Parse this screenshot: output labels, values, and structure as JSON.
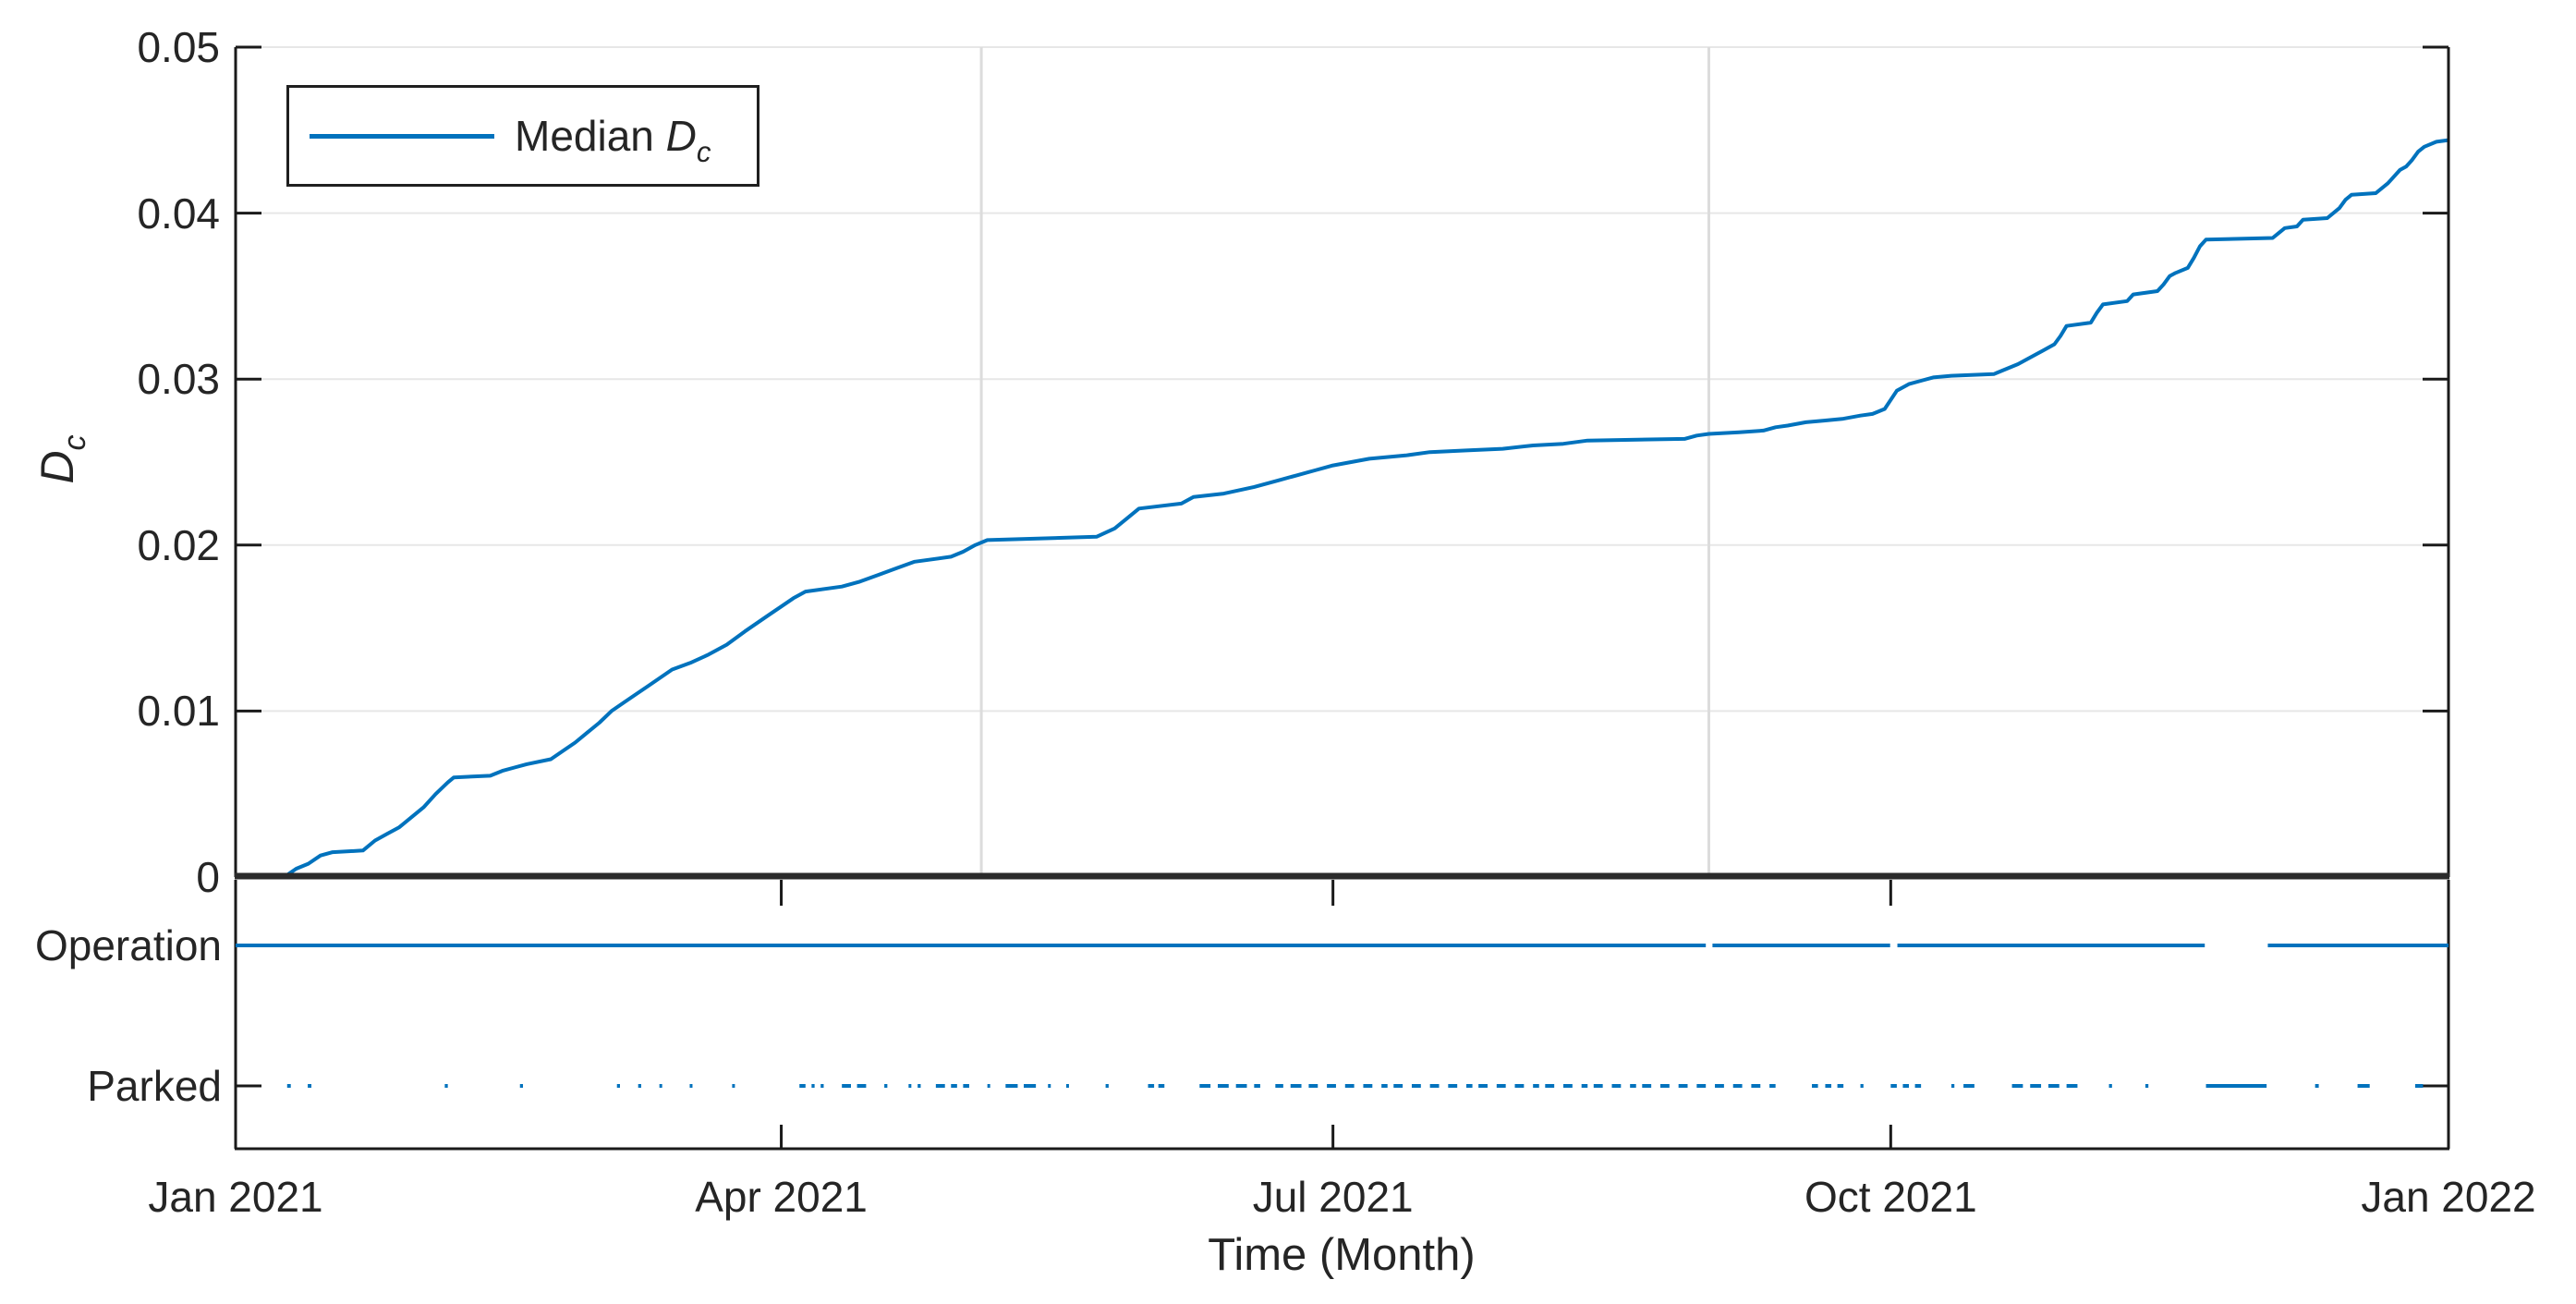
{
  "colors": {
    "line_blue": "#0072BD",
    "axis_dark": "#1a1a1a",
    "zero_line_dark": "#2b2b2b",
    "grid_light": "#e7e7e7",
    "event_line_gray": "#dcdcdc",
    "text": "#252525",
    "background": "#ffffff"
  },
  "legend": {
    "prefix": "Median ",
    "symbol": "D",
    "subscript": "c"
  },
  "axes_top": {
    "ylabel_symbol": "D",
    "ylabel_subscript": "c",
    "ylim": [
      0,
      0.05
    ],
    "yticks": [
      {
        "value": 0,
        "label": "0"
      },
      {
        "value": 0.01,
        "label": "0.01"
      },
      {
        "value": 0.02,
        "label": "0.02"
      },
      {
        "value": 0.03,
        "label": "0.03"
      },
      {
        "value": 0.04,
        "label": "0.04"
      },
      {
        "value": 0.05,
        "label": "0.05"
      }
    ]
  },
  "axes_bottom": {
    "categories": [
      {
        "label": "Operation"
      },
      {
        "label": "Parked"
      }
    ]
  },
  "xaxis": {
    "label": "Time (Month)",
    "xlim_days": [
      0,
      365
    ],
    "ticks": [
      {
        "day": 0,
        "label": "Jan 2021"
      },
      {
        "day": 90,
        "label": "Apr 2021"
      },
      {
        "day": 181,
        "label": "Jul 2021"
      },
      {
        "day": 273,
        "label": "Oct 2021"
      },
      {
        "day": 365,
        "label": "Jan 2022"
      }
    ]
  },
  "chart_data": [
    {
      "type": "line",
      "title": "",
      "xlabel": "Time (Month)",
      "ylabel": "D_c",
      "ylim": [
        0,
        0.05
      ],
      "x_unit": "days since 2021-01-01",
      "grid": "horizontal",
      "legend_position": "top-left",
      "event_lines_days": [
        123,
        243
      ],
      "series": [
        {
          "name": "Median D_c",
          "points": [
            [
              0,
              0
            ],
            [
              8,
              0
            ],
            [
              10,
              0.0005
            ],
            [
              12,
              0.0008
            ],
            [
              14,
              0.0013
            ],
            [
              16,
              0.0015
            ],
            [
              21,
              0.0016
            ],
            [
              23,
              0.0022
            ],
            [
              25,
              0.0026
            ],
            [
              27,
              0.003
            ],
            [
              29,
              0.0036
            ],
            [
              31,
              0.0042
            ],
            [
              33,
              0.005
            ],
            [
              35,
              0.0057
            ],
            [
              36,
              0.006
            ],
            [
              42,
              0.0061
            ],
            [
              44,
              0.0064
            ],
            [
              46,
              0.0066
            ],
            [
              48,
              0.0068
            ],
            [
              52,
              0.0071
            ],
            [
              54,
              0.0076
            ],
            [
              56,
              0.0081
            ],
            [
              58,
              0.0087
            ],
            [
              60,
              0.0093
            ],
            [
              62,
              0.01
            ],
            [
              64,
              0.0105
            ],
            [
              66,
              0.011
            ],
            [
              68,
              0.0115
            ],
            [
              70,
              0.012
            ],
            [
              72,
              0.0125
            ],
            [
              75,
              0.0129
            ],
            [
              78,
              0.0134
            ],
            [
              81,
              0.014
            ],
            [
              84,
              0.0148
            ],
            [
              86,
              0.0153
            ],
            [
              88,
              0.0158
            ],
            [
              90,
              0.0163
            ],
            [
              92,
              0.0168
            ],
            [
              94,
              0.0172
            ],
            [
              100,
              0.0175
            ],
            [
              103,
              0.0178
            ],
            [
              106,
              0.0182
            ],
            [
              109,
              0.0186
            ],
            [
              112,
              0.019
            ],
            [
              118,
              0.0193
            ],
            [
              120,
              0.0196
            ],
            [
              122,
              0.02
            ],
            [
              124,
              0.0203
            ],
            [
              142,
              0.0205
            ],
            [
              145,
              0.021
            ],
            [
              147,
              0.0216
            ],
            [
              149,
              0.0222
            ],
            [
              156,
              0.0225
            ],
            [
              158,
              0.0229
            ],
            [
              163,
              0.0231
            ],
            [
              168,
              0.0235
            ],
            [
              172,
              0.0239
            ],
            [
              175,
              0.0242
            ],
            [
              178,
              0.0245
            ],
            [
              181,
              0.0248
            ],
            [
              184,
              0.025
            ],
            [
              187,
              0.0252
            ],
            [
              193,
              0.0254
            ],
            [
              197,
              0.0256
            ],
            [
              203,
              0.0257
            ],
            [
              209,
              0.0258
            ],
            [
              214,
              0.026
            ],
            [
              219,
              0.0261
            ],
            [
              223,
              0.0263
            ],
            [
              239,
              0.0264
            ],
            [
              241,
              0.0266
            ],
            [
              243,
              0.0267
            ],
            [
              248,
              0.0268
            ],
            [
              252,
              0.0269
            ],
            [
              254,
              0.0271
            ],
            [
              256,
              0.0272
            ],
            [
              259,
              0.0274
            ],
            [
              262,
              0.0275
            ],
            [
              265,
              0.0276
            ],
            [
              268,
              0.0278
            ],
            [
              270,
              0.0279
            ],
            [
              272,
              0.0282
            ],
            [
              274,
              0.0293
            ],
            [
              276,
              0.0297
            ],
            [
              278,
              0.0299
            ],
            [
              280,
              0.0301
            ],
            [
              283,
              0.0302
            ],
            [
              290,
              0.0303
            ],
            [
              292,
              0.0306
            ],
            [
              294,
              0.0309
            ],
            [
              296,
              0.0313
            ],
            [
              298,
              0.0317
            ],
            [
              300,
              0.0321
            ],
            [
              301,
              0.0326
            ],
            [
              302,
              0.0332
            ],
            [
              306,
              0.0334
            ],
            [
              307,
              0.034
            ],
            [
              308,
              0.0345
            ],
            [
              312,
              0.0347
            ],
            [
              313,
              0.0351
            ],
            [
              317,
              0.0353
            ],
            [
              318,
              0.0357
            ],
            [
              319,
              0.0362
            ],
            [
              320,
              0.0364
            ],
            [
              322,
              0.0367
            ],
            [
              323,
              0.0373
            ],
            [
              324,
              0.038
            ],
            [
              325,
              0.0384
            ],
            [
              336,
              0.0385
            ],
            [
              338,
              0.0391
            ],
            [
              340,
              0.0392
            ],
            [
              341,
              0.0396
            ],
            [
              345,
              0.0397
            ],
            [
              347,
              0.0403
            ],
            [
              348,
              0.0408
            ],
            [
              349,
              0.0411
            ],
            [
              353,
              0.0412
            ],
            [
              355,
              0.0418
            ],
            [
              357,
              0.0426
            ],
            [
              358,
              0.0428
            ],
            [
              359,
              0.0432
            ],
            [
              360,
              0.0437
            ],
            [
              361,
              0.044
            ],
            [
              363,
              0.0443
            ],
            [
              365,
              0.0444
            ]
          ]
        }
      ]
    },
    {
      "type": "timeline",
      "categories": [
        "Operation",
        "Parked"
      ],
      "operation_segments_days": [
        [
          0,
          242.5
        ],
        [
          243.6,
          272.9
        ],
        [
          274.1,
          324.8
        ],
        [
          335.2,
          365
        ]
      ],
      "parked_segments_days": [
        [
          8.5,
          9.1
        ],
        [
          11.9,
          12.5
        ],
        [
          34.5,
          35.0
        ],
        [
          46.9,
          47.4
        ],
        [
          62.9,
          63.4
        ],
        [
          66.4,
          66.9
        ],
        [
          69.9,
          70.3
        ],
        [
          74.9,
          75.3
        ],
        [
          81.9,
          82.3
        ],
        [
          93.0,
          94.0
        ],
        [
          95.0,
          95.5
        ],
        [
          96.5,
          97.0
        ],
        [
          100.0,
          101.5
        ],
        [
          102.5,
          104.0
        ],
        [
          107.0,
          107.5
        ],
        [
          111.0,
          111.4
        ],
        [
          112.5,
          113.0
        ],
        [
          115.5,
          117.0
        ],
        [
          118.0,
          119.0
        ],
        [
          120.0,
          121.0
        ],
        [
          124.0,
          124.4
        ],
        [
          127.0,
          129.0
        ],
        [
          130.0,
          132.0
        ],
        [
          134.0,
          134.4
        ],
        [
          137.0,
          137.4
        ],
        [
          143.5,
          144.0
        ],
        [
          150.5,
          151.5
        ],
        [
          152.2,
          153.2
        ],
        [
          159.0,
          160.8
        ],
        [
          162.0,
          163.8
        ],
        [
          165.0,
          166.8
        ],
        [
          168.0,
          169.0
        ],
        [
          171.5,
          172.8
        ],
        [
          174.0,
          175.8
        ],
        [
          177.0,
          178.5
        ],
        [
          180.0,
          181.5
        ],
        [
          183.0,
          184.5
        ],
        [
          186.0,
          187.5
        ],
        [
          189.0,
          190.0
        ],
        [
          191.0,
          192.5
        ],
        [
          194.0,
          195.5
        ],
        [
          197.0,
          198.5
        ],
        [
          200.0,
          201.5
        ],
        [
          203.0,
          204.0
        ],
        [
          205.0,
          206.5
        ],
        [
          208.0,
          209.5
        ],
        [
          211.0,
          212.5
        ],
        [
          214.0,
          215.0
        ],
        [
          216.0,
          217.5
        ],
        [
          219.0,
          220.5
        ],
        [
          222.0,
          223.0
        ],
        [
          224.0,
          225.5
        ],
        [
          227.0,
          228.5
        ],
        [
          230.0,
          231.0
        ],
        [
          232.0,
          233.5
        ],
        [
          235.0,
          236.5
        ],
        [
          238.0,
          239.5
        ],
        [
          241.0,
          242.5
        ],
        [
          244.0,
          245.5
        ],
        [
          247.0,
          248.5
        ],
        [
          250.0,
          251.5
        ],
        [
          253.0,
          254.0
        ],
        [
          260.0,
          261.0
        ],
        [
          262.2,
          263.2
        ],
        [
          264.2,
          265.2
        ],
        [
          268.0,
          268.5
        ],
        [
          273.0,
          274.0
        ],
        [
          275.0,
          276.0
        ],
        [
          277.0,
          278.0
        ],
        [
          283.0,
          283.5
        ],
        [
          285.0,
          286.8
        ],
        [
          293.0,
          294.8
        ],
        [
          296.0,
          297.8
        ],
        [
          299.0,
          300.8
        ],
        [
          302.0,
          303.8
        ],
        [
          309.0,
          309.5
        ],
        [
          315.0,
          315.5
        ],
        [
          325.0,
          335.0
        ],
        [
          343.0,
          343.6
        ],
        [
          350.0,
          352.0
        ],
        [
          359.5,
          360.8
        ]
      ]
    }
  ]
}
